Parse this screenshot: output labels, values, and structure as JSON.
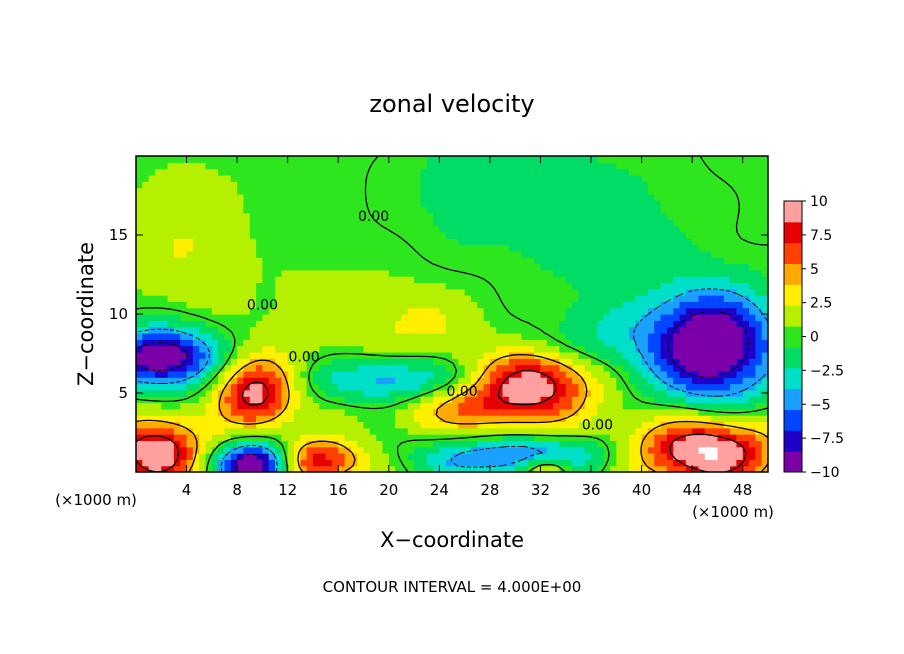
{
  "chart_data": {
    "type": "heatmap",
    "title": "zonal velocity",
    "xlabel": "X−coordinate",
    "ylabel": "Z−coordinate",
    "x_unit_left": "(×1000 m)",
    "x_unit_right": "(×1000 m)",
    "xlim": [
      0,
      50
    ],
    "ylim": [
      0,
      20
    ],
    "x_ticks": [
      "4",
      "8",
      "12",
      "16",
      "20",
      "24",
      "28",
      "32",
      "36",
      "40",
      "44",
      "48"
    ],
    "x_tick_values": [
      4,
      8,
      12,
      16,
      20,
      24,
      28,
      32,
      36,
      40,
      44,
      48
    ],
    "y_ticks": [
      "5",
      "10",
      "15"
    ],
    "y_tick_values": [
      5,
      10,
      15
    ],
    "colorbar": {
      "min": -10,
      "max": 10,
      "labels": [
        "10",
        "7.5",
        "5",
        "2.5",
        "0",
        "−2.5",
        "−5",
        "−7.5",
        "−10"
      ],
      "label_values": [
        10,
        7.5,
        5,
        2.5,
        0,
        -2.5,
        -5,
        -7.5,
        -10
      ],
      "colors": [
        "#7b00a8",
        "#1e00c8",
        "#0046ff",
        "#1aa0ff",
        "#00e0c8",
        "#00dc64",
        "#2ee61e",
        "#b4f000",
        "#fff000",
        "#ffaa00",
        "#ff4000",
        "#e60000",
        "#ffa0a0"
      ]
    },
    "contour_labels": [
      {
        "text": "0.00",
        "x": 18.8,
        "y": 15.9
      },
      {
        "text": "0.00",
        "x": 10.0,
        "y": 10.3
      },
      {
        "text": "0.00",
        "x": 13.3,
        "y": 7.0
      },
      {
        "text": "0.00",
        "x": 25.8,
        "y": 4.8
      },
      {
        "text": "0.00",
        "x": 36.5,
        "y": 2.7
      }
    ],
    "features": [
      {
        "x": 2,
        "y": 7.3,
        "sx": 3.0,
        "sy": 1.3,
        "v": -11
      },
      {
        "x": 1.5,
        "y": 1.3,
        "sx": 2.5,
        "sy": 1.5,
        "v": 10
      },
      {
        "x": 9.5,
        "y": 5.0,
        "sx": 2.2,
        "sy": 1.6,
        "v": 9
      },
      {
        "x": 9.5,
        "y": 0.5,
        "sx": 2.0,
        "sy": 1.0,
        "v": -12
      },
      {
        "x": 14.5,
        "y": 0.7,
        "sx": 2.5,
        "sy": 1.0,
        "v": 8
      },
      {
        "x": 21.5,
        "y": 5.8,
        "sx": 5.0,
        "sy": 1.0,
        "v": -6
      },
      {
        "x": 28.5,
        "y": 4.5,
        "sx": 5.0,
        "sy": 1.6,
        "v": 7
      },
      {
        "x": 31.5,
        "y": 6.0,
        "sx": 3.0,
        "sy": 1.2,
        "v": 6
      },
      {
        "x": 30.0,
        "y": 1.0,
        "sx": 5.0,
        "sy": 1.0,
        "v": -7
      },
      {
        "x": 32.5,
        "y": 0.2,
        "sx": 1.5,
        "sy": 0.6,
        "v": 6
      },
      {
        "x": 45.5,
        "y": 8.0,
        "sx": 3.5,
        "sy": 2.4,
        "v": -12
      },
      {
        "x": 45.0,
        "y": 1.3,
        "sx": 3.8,
        "sy": 1.5,
        "v": 11
      },
      {
        "x": 4.0,
        "y": 14.5,
        "sx": 3.0,
        "sy": 3.0,
        "v": 2
      },
      {
        "x": 28.0,
        "y": 18.0,
        "sx": 5.0,
        "sy": 3.0,
        "v": -2
      },
      {
        "x": 38.0,
        "y": 15.0,
        "sx": 5.0,
        "sy": 4.0,
        "v": -1.5
      },
      {
        "x": 16.0,
        "y": 10.0,
        "sx": 4.0,
        "sy": 2.0,
        "v": 1.5
      },
      {
        "x": 23.0,
        "y": 9.5,
        "sx": 3.0,
        "sy": 1.5,
        "v": 2
      },
      {
        "x": 37.0,
        "y": 8.5,
        "sx": 3.0,
        "sy": 1.5,
        "v": -2
      }
    ]
  },
  "footer_text": "CONTOUR INTERVAL = 4.000E+00"
}
